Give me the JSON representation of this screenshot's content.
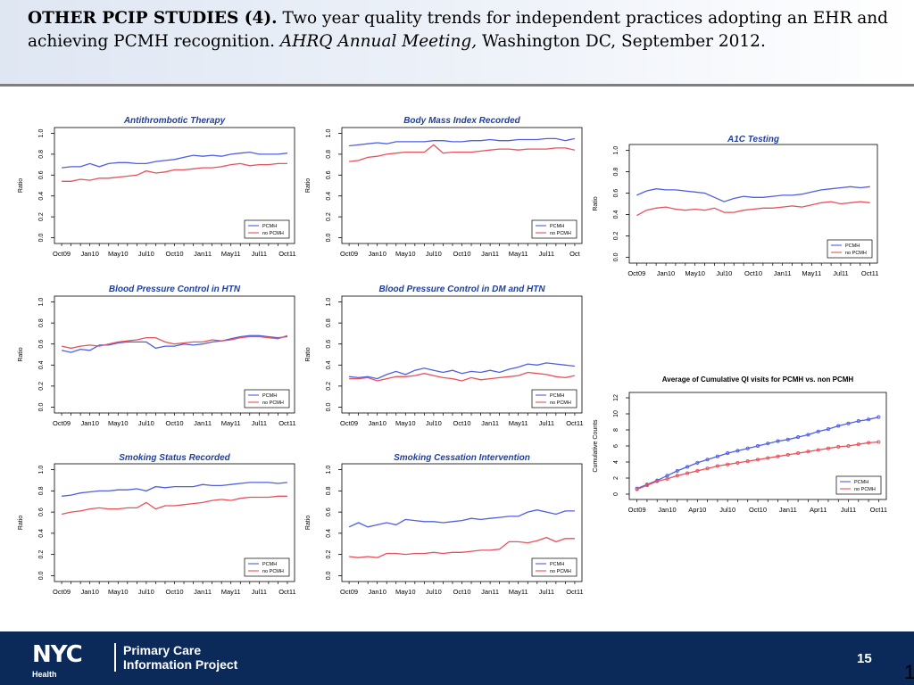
{
  "header": {
    "bold": "OTHER PCIP STUDIES (4).",
    "text1": " Two year quality trends for independent practices adopting an EHR and achieving PCMH recognition. ",
    "italic": "AHRQ Annual Meeting,",
    "text2": " Washington DC, September 2012."
  },
  "footer": {
    "logo": "NYC",
    "logo_sub": "Health",
    "project_line1": "Primary Care",
    "project_line2": "Information Project",
    "page_number": "15",
    "edge_number": "1"
  },
  "colors": {
    "pcmh": "#4f5fe0",
    "no_pcmh": "#e8505a",
    "title": "#1f3f9f",
    "footer_bg": "#0b2a5a"
  },
  "chart_data": [
    {
      "type": "line",
      "title": "Antithrombotic Therapy",
      "ylabel": "Ratio",
      "ylim": [
        0,
        1
      ],
      "yticks": [
        "0.0",
        "0.2",
        "0.4",
        "0.6",
        "0.8",
        "1.0"
      ],
      "xticks": [
        "Oct09",
        "Jan10",
        "May10",
        "Jul10",
        "Oct10",
        "Jan11",
        "May11",
        "Jul11",
        "Oct11"
      ],
      "legend": [
        "PCMH",
        "no PCMH"
      ],
      "legend_position": "bottom-right",
      "series": [
        {
          "name": "PCMH",
          "values": [
            0.67,
            0.68,
            0.68,
            0.71,
            0.68,
            0.71,
            0.72,
            0.72,
            0.71,
            0.71,
            0.73,
            0.74,
            0.75,
            0.77,
            0.79,
            0.78,
            0.79,
            0.78,
            0.8,
            0.81,
            0.82,
            0.8,
            0.8,
            0.8,
            0.81
          ]
        },
        {
          "name": "no PCMH",
          "values": [
            0.54,
            0.54,
            0.56,
            0.55,
            0.57,
            0.57,
            0.58,
            0.59,
            0.6,
            0.64,
            0.62,
            0.63,
            0.65,
            0.65,
            0.66,
            0.67,
            0.67,
            0.68,
            0.7,
            0.71,
            0.69,
            0.7,
            0.7,
            0.71,
            0.71
          ]
        }
      ]
    },
    {
      "type": "line",
      "title": "Body Mass Index Recorded",
      "ylabel": "Ratio",
      "ylim": [
        0,
        1
      ],
      "yticks": [
        "0.0",
        "0.2",
        "0.4",
        "0.6",
        "0.8",
        "1.0"
      ],
      "xticks": [
        "Oct09",
        "Jan10",
        "May10",
        "Jul10",
        "Oct10",
        "Jan11",
        "May11",
        "Jul11",
        "Oct"
      ],
      "legend": [
        "PCMH",
        "no PCMH"
      ],
      "legend_position": "bottom-right",
      "series": [
        {
          "name": "PCMH",
          "values": [
            0.88,
            0.89,
            0.9,
            0.91,
            0.9,
            0.92,
            0.92,
            0.92,
            0.92,
            0.93,
            0.93,
            0.92,
            0.92,
            0.93,
            0.93,
            0.94,
            0.93,
            0.93,
            0.94,
            0.94,
            0.94,
            0.95,
            0.95,
            0.93,
            0.95
          ]
        },
        {
          "name": "no PCMH",
          "values": [
            0.73,
            0.74,
            0.77,
            0.78,
            0.8,
            0.81,
            0.82,
            0.82,
            0.82,
            0.89,
            0.81,
            0.82,
            0.82,
            0.82,
            0.83,
            0.84,
            0.85,
            0.85,
            0.84,
            0.85,
            0.85,
            0.85,
            0.86,
            0.86,
            0.84
          ]
        }
      ]
    },
    {
      "type": "line",
      "title": "A1C Testing",
      "ylabel": "Ratio",
      "ylim": [
        0,
        1
      ],
      "yticks": [
        "0.0",
        "0.2",
        "0.4",
        "0.6",
        "0.8",
        "1.0"
      ],
      "xticks": [
        "Oct09",
        "Jan10",
        "May10",
        "Jul10",
        "Oct10",
        "Jan11",
        "May11",
        "Jul11",
        "Oct11"
      ],
      "legend": [
        "PCMH",
        "no PCMH"
      ],
      "legend_position": "bottom-right",
      "series": [
        {
          "name": "PCMH",
          "values": [
            0.58,
            0.62,
            0.64,
            0.63,
            0.63,
            0.62,
            0.61,
            0.6,
            0.56,
            0.52,
            0.55,
            0.57,
            0.56,
            0.56,
            0.57,
            0.58,
            0.58,
            0.59,
            0.61,
            0.63,
            0.64,
            0.65,
            0.66,
            0.65,
            0.66
          ]
        },
        {
          "name": "no PCMH",
          "values": [
            0.39,
            0.44,
            0.46,
            0.47,
            0.45,
            0.44,
            0.45,
            0.44,
            0.46,
            0.42,
            0.42,
            0.44,
            0.45,
            0.46,
            0.46,
            0.47,
            0.48,
            0.47,
            0.49,
            0.51,
            0.52,
            0.5,
            0.51,
            0.52,
            0.51
          ]
        }
      ]
    },
    {
      "type": "line",
      "title": "Blood Pressure Control in HTN",
      "ylabel": "Ratio",
      "ylim": [
        0,
        1
      ],
      "yticks": [
        "0.0",
        "0.2",
        "0.4",
        "0.6",
        "0.8",
        "1.0"
      ],
      "xticks": [
        "Oct09",
        "Jan10",
        "May10",
        "Jul10",
        "Oct10",
        "Jan11",
        "May11",
        "Jul11",
        "Oct11"
      ],
      "legend": [
        "PCMH",
        "no PCMH"
      ],
      "legend_position": "bottom-right",
      "series": [
        {
          "name": "PCMH",
          "values": [
            0.54,
            0.52,
            0.55,
            0.54,
            0.59,
            0.59,
            0.61,
            0.62,
            0.62,
            0.62,
            0.56,
            0.58,
            0.58,
            0.6,
            0.59,
            0.6,
            0.62,
            0.63,
            0.65,
            0.67,
            0.68,
            0.68,
            0.67,
            0.66,
            0.67
          ]
        },
        {
          "name": "no PCMH",
          "values": [
            0.58,
            0.56,
            0.58,
            0.59,
            0.58,
            0.6,
            0.62,
            0.63,
            0.64,
            0.66,
            0.66,
            0.62,
            0.6,
            0.61,
            0.62,
            0.62,
            0.64,
            0.63,
            0.64,
            0.66,
            0.67,
            0.67,
            0.66,
            0.65,
            0.68
          ]
        }
      ]
    },
    {
      "type": "line",
      "title": "Blood Pressure Control in DM and HTN",
      "ylabel": "Ratio",
      "ylim": [
        0,
        1
      ],
      "yticks": [
        "0.0",
        "0.2",
        "0.4",
        "0.6",
        "0.8",
        "1.0"
      ],
      "xticks": [
        "Oct09",
        "Jan10",
        "May10",
        "Jul10",
        "Oct10",
        "Jan11",
        "May11",
        "Jul11",
        "Oct11"
      ],
      "legend": [
        "PCMH",
        "no PCMH"
      ],
      "legend_position": "bottom-right",
      "series": [
        {
          "name": "PCMH",
          "values": [
            0.29,
            0.28,
            0.29,
            0.27,
            0.31,
            0.34,
            0.31,
            0.35,
            0.37,
            0.35,
            0.33,
            0.35,
            0.32,
            0.34,
            0.33,
            0.35,
            0.33,
            0.36,
            0.38,
            0.41,
            0.4,
            0.42,
            0.41,
            0.4,
            0.39
          ]
        },
        {
          "name": "no PCMH",
          "values": [
            0.27,
            0.27,
            0.28,
            0.25,
            0.27,
            0.29,
            0.29,
            0.3,
            0.32,
            0.3,
            0.28,
            0.27,
            0.25,
            0.28,
            0.26,
            0.27,
            0.28,
            0.29,
            0.3,
            0.33,
            0.32,
            0.31,
            0.29,
            0.28,
            0.3
          ]
        }
      ]
    },
    {
      "type": "line",
      "title": "Smoking Status Recorded",
      "ylabel": "Ratio",
      "ylim": [
        0,
        1
      ],
      "yticks": [
        "0.0",
        "0.2",
        "0.4",
        "0.6",
        "0.8",
        "1.0"
      ],
      "xticks": [
        "Oct09",
        "Jan10",
        "May10",
        "Jul10",
        "Oct10",
        "Jan11",
        "May11",
        "Jul11",
        "Oct11"
      ],
      "legend": [
        "PCMH",
        "no PCMH"
      ],
      "legend_position": "bottom-right",
      "series": [
        {
          "name": "PCMH",
          "values": [
            0.75,
            0.76,
            0.78,
            0.79,
            0.8,
            0.8,
            0.81,
            0.81,
            0.82,
            0.8,
            0.84,
            0.83,
            0.84,
            0.84,
            0.84,
            0.86,
            0.85,
            0.85,
            0.86,
            0.87,
            0.88,
            0.88,
            0.88,
            0.87,
            0.88
          ]
        },
        {
          "name": "no PCMH",
          "values": [
            0.58,
            0.6,
            0.61,
            0.63,
            0.64,
            0.63,
            0.63,
            0.64,
            0.64,
            0.69,
            0.63,
            0.66,
            0.66,
            0.67,
            0.68,
            0.69,
            0.71,
            0.72,
            0.71,
            0.73,
            0.74,
            0.74,
            0.74,
            0.75,
            0.75
          ]
        }
      ]
    },
    {
      "type": "line",
      "title": "Smoking Cessation Intervention",
      "ylabel": "Ratio",
      "ylim": [
        0,
        1
      ],
      "yticks": [
        "0.0",
        "0.2",
        "0.4",
        "0.6",
        "0.8",
        "1.0"
      ],
      "xticks": [
        "Oct09",
        "Jan10",
        "May10",
        "Jul10",
        "Oct10",
        "Jan11",
        "May11",
        "Jul11",
        "Oct11"
      ],
      "legend": [
        "PCMH",
        "no PCMH"
      ],
      "legend_position": "bottom-right",
      "series": [
        {
          "name": "PCMH",
          "values": [
            0.46,
            0.5,
            0.46,
            0.48,
            0.5,
            0.48,
            0.53,
            0.52,
            0.51,
            0.51,
            0.5,
            0.51,
            0.52,
            0.54,
            0.53,
            0.54,
            0.55,
            0.56,
            0.56,
            0.6,
            0.62,
            0.6,
            0.58,
            0.61,
            0.61
          ]
        },
        {
          "name": "no PCMH",
          "values": [
            0.18,
            0.17,
            0.18,
            0.17,
            0.21,
            0.21,
            0.2,
            0.21,
            0.21,
            0.22,
            0.21,
            0.22,
            0.22,
            0.23,
            0.24,
            0.24,
            0.25,
            0.32,
            0.32,
            0.31,
            0.33,
            0.36,
            0.32,
            0.35,
            0.35
          ]
        }
      ]
    },
    {
      "type": "line",
      "title": "Average of Cumulative QI visits for PCMH vs. non PCMH",
      "ylabel": "Cumulative Counts",
      "ylim": [
        0,
        12
      ],
      "markers": true,
      "yticks": [
        "0",
        "2",
        "4",
        "6",
        "8",
        "10",
        "12"
      ],
      "xticks": [
        "Oct09",
        "Jan10",
        "Apr10",
        "Jul10",
        "Oct10",
        "Jan11",
        "Apr11",
        "Jul11",
        "Oct11"
      ],
      "legend": [
        "PCMH",
        "no PCMH"
      ],
      "legend_position": "bottom-right",
      "series": [
        {
          "name": "PCMH",
          "values": [
            0.7,
            1.2,
            1.7,
            2.3,
            2.9,
            3.4,
            3.9,
            4.3,
            4.7,
            5.1,
            5.4,
            5.7,
            6.0,
            6.3,
            6.6,
            6.8,
            7.1,
            7.4,
            7.8,
            8.1,
            8.5,
            8.8,
            9.1,
            9.3,
            9.6
          ]
        },
        {
          "name": "no PCMH",
          "values": [
            0.6,
            1.1,
            1.6,
            1.9,
            2.3,
            2.6,
            2.9,
            3.2,
            3.5,
            3.7,
            3.9,
            4.1,
            4.3,
            4.5,
            4.7,
            4.9,
            5.1,
            5.3,
            5.5,
            5.7,
            5.9,
            6.0,
            6.2,
            6.4,
            6.5
          ]
        }
      ]
    }
  ]
}
